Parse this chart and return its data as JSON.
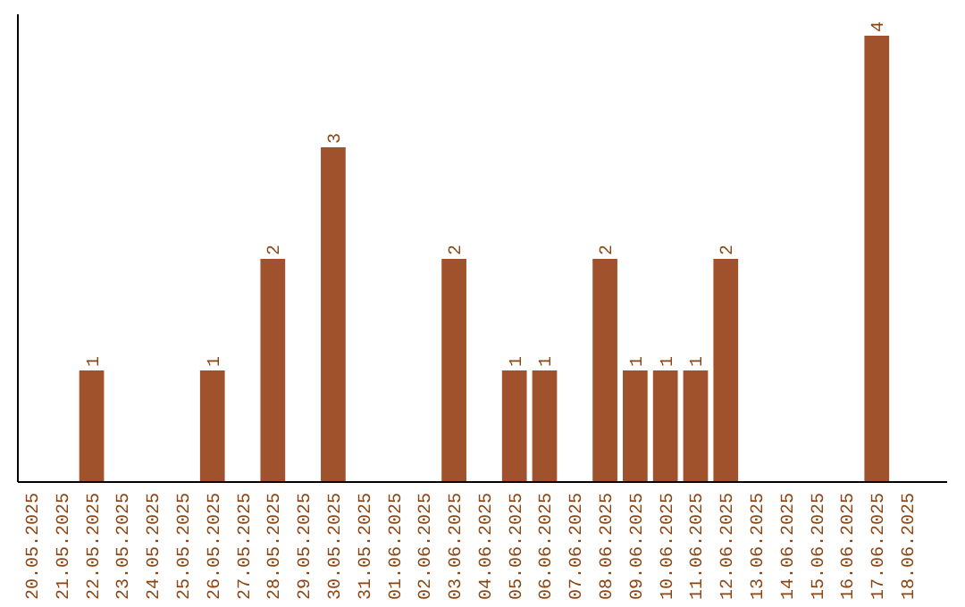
{
  "chart_data": {
    "type": "bar",
    "categories": [
      "20.05.2025",
      "21.05.2025",
      "22.05.2025",
      "23.05.2025",
      "24.05.2025",
      "25.05.2025",
      "26.05.2025",
      "27.05.2025",
      "28.05.2025",
      "29.05.2025",
      "30.05.2025",
      "31.05.2025",
      "01.06.2025",
      "02.06.2025",
      "03.06.2025",
      "04.06.2025",
      "05.06.2025",
      "06.06.2025",
      "07.06.2025",
      "08.06.2025",
      "09.06.2025",
      "10.06.2025",
      "11.06.2025",
      "12.06.2025",
      "13.06.2025",
      "14.06.2025",
      "15.06.2025",
      "16.06.2025",
      "17.06.2025",
      "18.06.2025"
    ],
    "values": [
      0,
      0,
      1,
      0,
      0,
      0,
      1,
      0,
      2,
      0,
      3,
      0,
      0,
      0,
      2,
      0,
      1,
      1,
      0,
      2,
      1,
      1,
      1,
      2,
      0,
      0,
      0,
      0,
      4,
      0
    ],
    "value_labels": [
      null,
      null,
      "1",
      null,
      null,
      null,
      "1",
      null,
      "2",
      null,
      "3",
      null,
      null,
      null,
      "2",
      null,
      "1",
      "1",
      null,
      "2",
      "1",
      "1",
      "1",
      "2",
      null,
      null,
      null,
      null,
      "4",
      null
    ],
    "color": "#a0522d"
  }
}
